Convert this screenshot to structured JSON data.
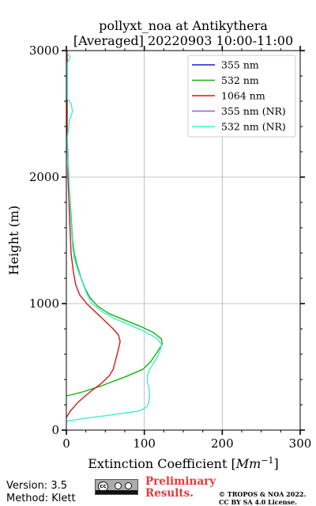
{
  "chart_data": {
    "type": "line",
    "title_line1": "pollyxt_noa at Antikythera",
    "title_line2": "[Averaged] 20220903 10:00-11:00",
    "xlabel_prefix": "Extinction Coefficient [",
    "xlabel_unit": "Mm",
    "xlabel_exp": "−1",
    "xlabel_suffix": "]",
    "ylabel": "Height (m)",
    "xlim": [
      0,
      300
    ],
    "ylim": [
      0,
      3000
    ],
    "xticks": [
      0,
      100,
      200,
      300
    ],
    "yticks": [
      0,
      1000,
      2000,
      3000
    ],
    "grid": true,
    "legend_position": "top-right",
    "series": [
      {
        "name": "355 nm",
        "color": "#1f1fd6",
        "points": []
      },
      {
        "name": "532 nm",
        "color": "#13b213",
        "points": [
          [
            0,
            270
          ],
          [
            20,
            300
          ],
          [
            45,
            350
          ],
          [
            75,
            420
          ],
          [
            98,
            480
          ],
          [
            108,
            540
          ],
          [
            117,
            620
          ],
          [
            123,
            680
          ],
          [
            122,
            720
          ],
          [
            112,
            770
          ],
          [
            95,
            820
          ],
          [
            75,
            870
          ],
          [
            55,
            920
          ],
          [
            40,
            980
          ],
          [
            30,
            1050
          ],
          [
            24,
            1120
          ],
          [
            19,
            1200
          ],
          [
            14,
            1300
          ],
          [
            10,
            1400
          ],
          [
            8,
            1500
          ],
          [
            7,
            1600
          ],
          [
            6,
            1700
          ],
          [
            5,
            1800
          ],
          [
            4,
            1900
          ],
          [
            3,
            2000
          ],
          [
            2,
            2100
          ],
          [
            1,
            2200
          ],
          [
            0,
            2300
          ]
        ]
      },
      {
        "name": "1064 nm",
        "color": "#d61818",
        "points": [
          [
            0,
            100
          ],
          [
            5,
            150
          ],
          [
            15,
            220
          ],
          [
            30,
            300
          ],
          [
            45,
            370
          ],
          [
            55,
            430
          ],
          [
            60,
            480
          ],
          [
            63,
            550
          ],
          [
            66,
            620
          ],
          [
            69,
            700
          ],
          [
            67,
            750
          ],
          [
            60,
            800
          ],
          [
            50,
            860
          ],
          [
            38,
            930
          ],
          [
            26,
            1000
          ],
          [
            17,
            1070
          ],
          [
            12,
            1150
          ],
          [
            9,
            1250
          ],
          [
            6,
            1400
          ],
          [
            5,
            1550
          ],
          [
            4,
            1700
          ],
          [
            3,
            1850
          ],
          [
            2,
            2000
          ],
          [
            2,
            2150
          ],
          [
            1,
            2300
          ],
          [
            1,
            2500
          ],
          [
            1,
            2700
          ],
          [
            1,
            3000
          ]
        ]
      },
      {
        "name": "355 nm (NR)",
        "color": "#a050e8",
        "points": []
      },
      {
        "name": "532 nm (NR)",
        "color": "#40f0d0",
        "points": [
          [
            0,
            70
          ],
          [
            20,
            90
          ],
          [
            45,
            110
          ],
          [
            70,
            130
          ],
          [
            92,
            150
          ],
          [
            100,
            170
          ],
          [
            104,
            190
          ],
          [
            106,
            230
          ],
          [
            107,
            280
          ],
          [
            106,
            330
          ],
          [
            104,
            380
          ],
          [
            104,
            430
          ],
          [
            106,
            470
          ],
          [
            110,
            510
          ],
          [
            116,
            570
          ],
          [
            121,
            640
          ],
          [
            122,
            680
          ],
          [
            115,
            730
          ],
          [
            100,
            780
          ],
          [
            82,
            830
          ],
          [
            62,
            880
          ],
          [
            45,
            940
          ],
          [
            33,
            1000
          ],
          [
            26,
            1080
          ],
          [
            21,
            1160
          ],
          [
            15,
            1260
          ],
          [
            10,
            1360
          ],
          [
            8,
            1450
          ],
          [
            7,
            1550
          ],
          [
            6,
            1650
          ],
          [
            5,
            1750
          ],
          [
            4,
            1900
          ],
          [
            3,
            2050
          ],
          [
            1,
            2200
          ],
          [
            1,
            2300
          ],
          [
            3,
            2400
          ],
          [
            4,
            2450
          ],
          [
            8,
            2520
          ],
          [
            6,
            2580
          ],
          [
            1,
            2620
          ],
          [
            1,
            2750
          ],
          [
            1,
            2900
          ],
          [
            5,
            2950
          ],
          [
            1,
            2980
          ]
        ]
      }
    ]
  },
  "footer": {
    "version": "Version: 3.5",
    "method": "Method: Klett",
    "preliminary_line1": "Preliminary",
    "preliminary_line2": "Results.",
    "copyright_line1": "© TROPOS & NOA 2022.",
    "copyright_line2": "CC BY SA 4.0 License.",
    "license_logo_text": "cc",
    "license_strip_text": "BY SA"
  }
}
